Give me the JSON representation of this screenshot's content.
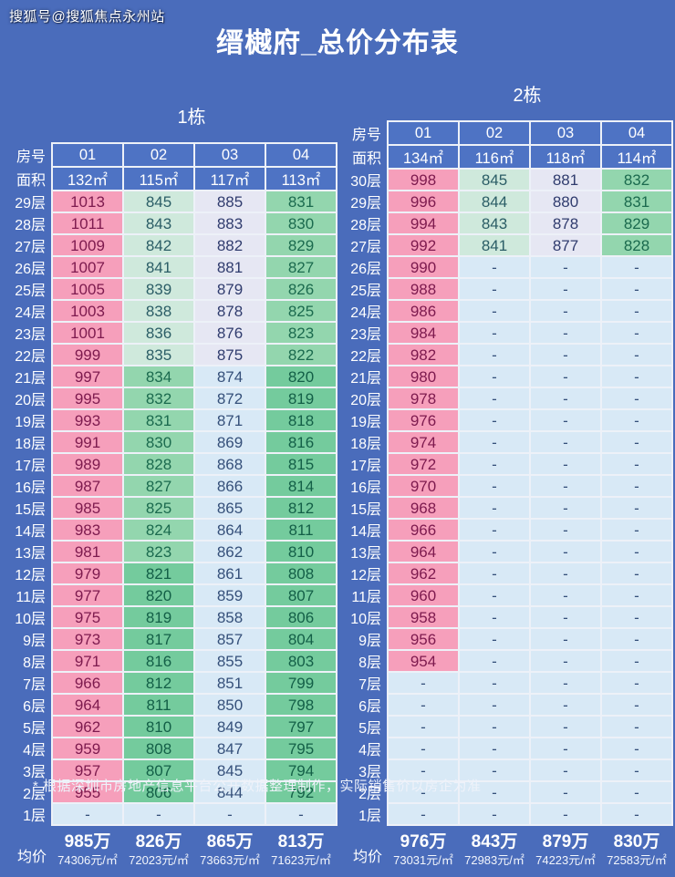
{
  "page": {
    "watermark": "搜狐号@搜狐焦点永州站",
    "title": "缙樾府_总价分布表",
    "footnote": "* 根据深圳市房地产信息平台公开数据整理制作，实际销售价以房企为准"
  },
  "labels": {
    "room_header": "房号",
    "area_header": "面积",
    "avg_header": "均价"
  },
  "colors": {
    "background": "#4a6cbb",
    "header_cell": "#4e73c4",
    "grid_border": "#edf1f8",
    "palette": {
      "pink": {
        "bg": "#f69fbb",
        "fg": "#7d1a4e"
      },
      "mint": {
        "bg": "#cfe9dc",
        "fg": "#2b5d66"
      },
      "greenlight": {
        "bg": "#93d6ae",
        "fg": "#1b6a4e"
      },
      "green": {
        "bg": "#74cb9d",
        "fg": "#135f47"
      },
      "lavender": {
        "bg": "#e6e7f3",
        "fg": "#303c6e"
      },
      "paleblue": {
        "bg": "#d8e9f6",
        "fg": "#35507a"
      }
    }
  },
  "chart_data": {
    "type": "table",
    "title": "缙樾府_总价分布表",
    "unit_note": "cell values are total price in 万 (10k CNY)",
    "tables": [
      {
        "name": "1栋",
        "rooms": [
          "01",
          "02",
          "03",
          "04"
        ],
        "areas": [
          "132㎡",
          "115㎡",
          "117㎡",
          "113㎡"
        ],
        "rows": [
          {
            "f": "29层",
            "v": [
              "1013",
              "845",
              "885",
              "831"
            ],
            "c": [
              "pink",
              "mint",
              "lavender",
              "greenlight"
            ]
          },
          {
            "f": "28层",
            "v": [
              "1011",
              "843",
              "883",
              "830"
            ],
            "c": [
              "pink",
              "mint",
              "lavender",
              "greenlight"
            ]
          },
          {
            "f": "27层",
            "v": [
              "1009",
              "842",
              "882",
              "829"
            ],
            "c": [
              "pink",
              "mint",
              "lavender",
              "greenlight"
            ]
          },
          {
            "f": "26层",
            "v": [
              "1007",
              "841",
              "881",
              "827"
            ],
            "c": [
              "pink",
              "mint",
              "lavender",
              "greenlight"
            ]
          },
          {
            "f": "25层",
            "v": [
              "1005",
              "839",
              "879",
              "826"
            ],
            "c": [
              "pink",
              "mint",
              "lavender",
              "greenlight"
            ]
          },
          {
            "f": "24层",
            "v": [
              "1003",
              "838",
              "878",
              "825"
            ],
            "c": [
              "pink",
              "mint",
              "lavender",
              "greenlight"
            ]
          },
          {
            "f": "23层",
            "v": [
              "1001",
              "836",
              "876",
              "823"
            ],
            "c": [
              "pink",
              "mint",
              "lavender",
              "greenlight"
            ]
          },
          {
            "f": "22层",
            "v": [
              "999",
              "835",
              "875",
              "822"
            ],
            "c": [
              "pink",
              "mint",
              "lavender",
              "greenlight"
            ]
          },
          {
            "f": "21层",
            "v": [
              "997",
              "834",
              "874",
              "820"
            ],
            "c": [
              "pink",
              "greenlight",
              "paleblue",
              "green"
            ]
          },
          {
            "f": "20层",
            "v": [
              "995",
              "832",
              "872",
              "819"
            ],
            "c": [
              "pink",
              "greenlight",
              "paleblue",
              "green"
            ]
          },
          {
            "f": "19层",
            "v": [
              "993",
              "831",
              "871",
              "818"
            ],
            "c": [
              "pink",
              "greenlight",
              "paleblue",
              "green"
            ]
          },
          {
            "f": "18层",
            "v": [
              "991",
              "830",
              "869",
              "816"
            ],
            "c": [
              "pink",
              "greenlight",
              "paleblue",
              "green"
            ]
          },
          {
            "f": "17层",
            "v": [
              "989",
              "828",
              "868",
              "815"
            ],
            "c": [
              "pink",
              "greenlight",
              "paleblue",
              "green"
            ]
          },
          {
            "f": "16层",
            "v": [
              "987",
              "827",
              "866",
              "814"
            ],
            "c": [
              "pink",
              "greenlight",
              "paleblue",
              "green"
            ]
          },
          {
            "f": "15层",
            "v": [
              "985",
              "825",
              "865",
              "812"
            ],
            "c": [
              "pink",
              "greenlight",
              "paleblue",
              "green"
            ]
          },
          {
            "f": "14层",
            "v": [
              "983",
              "824",
              "864",
              "811"
            ],
            "c": [
              "pink",
              "greenlight",
              "paleblue",
              "green"
            ]
          },
          {
            "f": "13层",
            "v": [
              "981",
              "823",
              "862",
              "810"
            ],
            "c": [
              "pink",
              "greenlight",
              "paleblue",
              "green"
            ]
          },
          {
            "f": "12层",
            "v": [
              "979",
              "821",
              "861",
              "808"
            ],
            "c": [
              "pink",
              "green",
              "paleblue",
              "green"
            ]
          },
          {
            "f": "11层",
            "v": [
              "977",
              "820",
              "859",
              "807"
            ],
            "c": [
              "pink",
              "green",
              "paleblue",
              "green"
            ]
          },
          {
            "f": "10层",
            "v": [
              "975",
              "819",
              "858",
              "806"
            ],
            "c": [
              "pink",
              "green",
              "paleblue",
              "green"
            ]
          },
          {
            "f": "9层",
            "v": [
              "973",
              "817",
              "857",
              "804"
            ],
            "c": [
              "pink",
              "green",
              "paleblue",
              "green"
            ]
          },
          {
            "f": "8层",
            "v": [
              "971",
              "816",
              "855",
              "803"
            ],
            "c": [
              "pink",
              "green",
              "paleblue",
              "green"
            ]
          },
          {
            "f": "7层",
            "v": [
              "966",
              "812",
              "851",
              "799"
            ],
            "c": [
              "pink",
              "green",
              "paleblue",
              "green"
            ]
          },
          {
            "f": "6层",
            "v": [
              "964",
              "811",
              "850",
              "798"
            ],
            "c": [
              "pink",
              "green",
              "paleblue",
              "green"
            ]
          },
          {
            "f": "5层",
            "v": [
              "962",
              "810",
              "849",
              "797"
            ],
            "c": [
              "pink",
              "green",
              "paleblue",
              "green"
            ]
          },
          {
            "f": "4层",
            "v": [
              "959",
              "808",
              "847",
              "795"
            ],
            "c": [
              "pink",
              "green",
              "paleblue",
              "green"
            ]
          },
          {
            "f": "3层",
            "v": [
              "957",
              "807",
              "845",
              "794"
            ],
            "c": [
              "pink",
              "green",
              "paleblue",
              "green"
            ]
          },
          {
            "f": "2层",
            "v": [
              "955",
              "806",
              "844",
              "792"
            ],
            "c": [
              "pink",
              "green",
              "paleblue",
              "green"
            ]
          },
          {
            "f": "1层",
            "v": [
              "-",
              "-",
              "-",
              "-"
            ],
            "c": [
              "paleblue",
              "paleblue",
              "paleblue",
              "paleblue"
            ]
          }
        ],
        "avg": [
          {
            "price": "985万",
            "unit": "74306元/㎡"
          },
          {
            "price": "826万",
            "unit": "72023元/㎡"
          },
          {
            "price": "865万",
            "unit": "73663元/㎡"
          },
          {
            "price": "813万",
            "unit": "71623元/㎡"
          }
        ]
      },
      {
        "name": "2栋",
        "rooms": [
          "01",
          "02",
          "03",
          "04"
        ],
        "areas": [
          "134㎡",
          "116㎡",
          "118㎡",
          "114㎡"
        ],
        "rows": [
          {
            "f": "30层",
            "v": [
              "998",
              "845",
              "881",
              "832"
            ],
            "c": [
              "pink",
              "mint",
              "lavender",
              "greenlight"
            ]
          },
          {
            "f": "29层",
            "v": [
              "996",
              "844",
              "880",
              "831"
            ],
            "c": [
              "pink",
              "mint",
              "lavender",
              "greenlight"
            ]
          },
          {
            "f": "28层",
            "v": [
              "994",
              "843",
              "878",
              "829"
            ],
            "c": [
              "pink",
              "mint",
              "lavender",
              "greenlight"
            ]
          },
          {
            "f": "27层",
            "v": [
              "992",
              "841",
              "877",
              "828"
            ],
            "c": [
              "pink",
              "mint",
              "lavender",
              "greenlight"
            ]
          },
          {
            "f": "26层",
            "v": [
              "990",
              "-",
              "-",
              "-"
            ],
            "c": [
              "pink",
              "paleblue",
              "paleblue",
              "paleblue"
            ]
          },
          {
            "f": "25层",
            "v": [
              "988",
              "-",
              "-",
              "-"
            ],
            "c": [
              "pink",
              "paleblue",
              "paleblue",
              "paleblue"
            ]
          },
          {
            "f": "24层",
            "v": [
              "986",
              "-",
              "-",
              "-"
            ],
            "c": [
              "pink",
              "paleblue",
              "paleblue",
              "paleblue"
            ]
          },
          {
            "f": "23层",
            "v": [
              "984",
              "-",
              "-",
              "-"
            ],
            "c": [
              "pink",
              "paleblue",
              "paleblue",
              "paleblue"
            ]
          },
          {
            "f": "22层",
            "v": [
              "982",
              "-",
              "-",
              "-"
            ],
            "c": [
              "pink",
              "paleblue",
              "paleblue",
              "paleblue"
            ]
          },
          {
            "f": "21层",
            "v": [
              "980",
              "-",
              "-",
              "-"
            ],
            "c": [
              "pink",
              "paleblue",
              "paleblue",
              "paleblue"
            ]
          },
          {
            "f": "20层",
            "v": [
              "978",
              "-",
              "-",
              "-"
            ],
            "c": [
              "pink",
              "paleblue",
              "paleblue",
              "paleblue"
            ]
          },
          {
            "f": "19层",
            "v": [
              "976",
              "-",
              "-",
              "-"
            ],
            "c": [
              "pink",
              "paleblue",
              "paleblue",
              "paleblue"
            ]
          },
          {
            "f": "18层",
            "v": [
              "974",
              "-",
              "-",
              "-"
            ],
            "c": [
              "pink",
              "paleblue",
              "paleblue",
              "paleblue"
            ]
          },
          {
            "f": "17层",
            "v": [
              "972",
              "-",
              "-",
              "-"
            ],
            "c": [
              "pink",
              "paleblue",
              "paleblue",
              "paleblue"
            ]
          },
          {
            "f": "16层",
            "v": [
              "970",
              "-",
              "-",
              "-"
            ],
            "c": [
              "pink",
              "paleblue",
              "paleblue",
              "paleblue"
            ]
          },
          {
            "f": "15层",
            "v": [
              "968",
              "-",
              "-",
              "-"
            ],
            "c": [
              "pink",
              "paleblue",
              "paleblue",
              "paleblue"
            ]
          },
          {
            "f": "14层",
            "v": [
              "966",
              "-",
              "-",
              "-"
            ],
            "c": [
              "pink",
              "paleblue",
              "paleblue",
              "paleblue"
            ]
          },
          {
            "f": "13层",
            "v": [
              "964",
              "-",
              "-",
              "-"
            ],
            "c": [
              "pink",
              "paleblue",
              "paleblue",
              "paleblue"
            ]
          },
          {
            "f": "12层",
            "v": [
              "962",
              "-",
              "-",
              "-"
            ],
            "c": [
              "pink",
              "paleblue",
              "paleblue",
              "paleblue"
            ]
          },
          {
            "f": "11层",
            "v": [
              "960",
              "-",
              "-",
              "-"
            ],
            "c": [
              "pink",
              "paleblue",
              "paleblue",
              "paleblue"
            ]
          },
          {
            "f": "10层",
            "v": [
              "958",
              "-",
              "-",
              "-"
            ],
            "c": [
              "pink",
              "paleblue",
              "paleblue",
              "paleblue"
            ]
          },
          {
            "f": "9层",
            "v": [
              "956",
              "-",
              "-",
              "-"
            ],
            "c": [
              "pink",
              "paleblue",
              "paleblue",
              "paleblue"
            ]
          },
          {
            "f": "8层",
            "v": [
              "954",
              "-",
              "-",
              "-"
            ],
            "c": [
              "pink",
              "paleblue",
              "paleblue",
              "paleblue"
            ]
          },
          {
            "f": "7层",
            "v": [
              "-",
              "-",
              "-",
              "-"
            ],
            "c": [
              "paleblue",
              "paleblue",
              "paleblue",
              "paleblue"
            ]
          },
          {
            "f": "6层",
            "v": [
              "-",
              "-",
              "-",
              "-"
            ],
            "c": [
              "paleblue",
              "paleblue",
              "paleblue",
              "paleblue"
            ]
          },
          {
            "f": "5层",
            "v": [
              "-",
              "-",
              "-",
              "-"
            ],
            "c": [
              "paleblue",
              "paleblue",
              "paleblue",
              "paleblue"
            ]
          },
          {
            "f": "4层",
            "v": [
              "-",
              "-",
              "-",
              "-"
            ],
            "c": [
              "paleblue",
              "paleblue",
              "paleblue",
              "paleblue"
            ]
          },
          {
            "f": "3层",
            "v": [
              "-",
              "-",
              "-",
              "-"
            ],
            "c": [
              "paleblue",
              "paleblue",
              "paleblue",
              "paleblue"
            ]
          },
          {
            "f": "2层",
            "v": [
              "-",
              "-",
              "-",
              "-"
            ],
            "c": [
              "paleblue",
              "paleblue",
              "paleblue",
              "paleblue"
            ]
          },
          {
            "f": "1层",
            "v": [
              "-",
              "-",
              "-",
              "-"
            ],
            "c": [
              "paleblue",
              "paleblue",
              "paleblue",
              "paleblue"
            ]
          }
        ],
        "avg": [
          {
            "price": "976万",
            "unit": "73031元/㎡"
          },
          {
            "price": "843万",
            "unit": "72983元/㎡"
          },
          {
            "price": "879万",
            "unit": "74223元/㎡"
          },
          {
            "price": "830万",
            "unit": "72583元/㎡"
          }
        ]
      }
    ]
  }
}
